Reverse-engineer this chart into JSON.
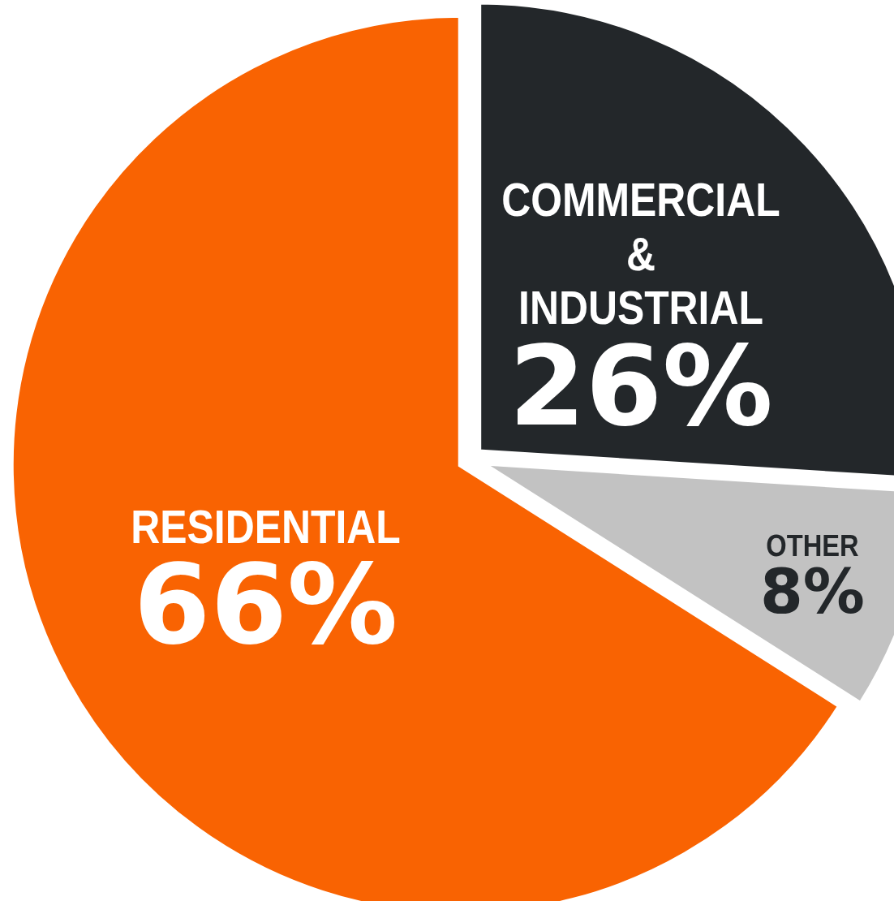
{
  "chart_data": {
    "type": "pie",
    "categories": [
      "COMMERCIAL & INDUSTRIAL",
      "OTHER",
      "RESIDENTIAL"
    ],
    "values": [
      26,
      8,
      66
    ],
    "value_labels": [
      "26%",
      "8%",
      "66%"
    ],
    "colors": [
      "#23272a",
      "#c2c2c2",
      "#f96302"
    ]
  }
}
